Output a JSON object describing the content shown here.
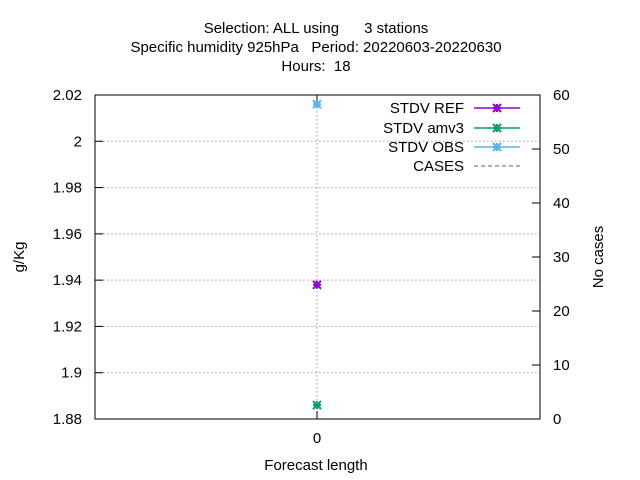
{
  "chart_data": {
    "type": "scatter",
    "title_lines": [
      "Selection: ALL using      3 stations",
      "Specific humidity 925hPa   Period: 20220603-20220630",
      "Hours:  18"
    ],
    "xlabel": "Forecast length",
    "ylabel": "g/Kg",
    "y2label": "No cases",
    "x": [
      0
    ],
    "x_ticks": [
      "0"
    ],
    "ylim": [
      1.88,
      2.02
    ],
    "y_ticks": [
      "1.88",
      "1.9",
      "1.92",
      "1.94",
      "1.96",
      "1.98",
      "2",
      "2.02"
    ],
    "y2lim": [
      0,
      60
    ],
    "y2_ticks": [
      "0",
      "10",
      "20",
      "30",
      "40",
      "50",
      "60"
    ],
    "grid": true,
    "legend_position": "top-right",
    "series": [
      {
        "name": "STDV REF",
        "axis": "y",
        "values": [
          1.938
        ],
        "color": "#9400d3",
        "style": "linespoints"
      },
      {
        "name": "STDV amv3",
        "axis": "y",
        "values": [
          1.886
        ],
        "color": "#009e73",
        "style": "linespoints"
      },
      {
        "name": "STDV OBS",
        "axis": "y",
        "values": [
          2.016
        ],
        "color": "#56b4e9",
        "style": "linespoints"
      },
      {
        "name": "CASES",
        "axis": "y2",
        "values": [
          3
        ],
        "color": "#999999",
        "style": "dashed"
      }
    ]
  }
}
